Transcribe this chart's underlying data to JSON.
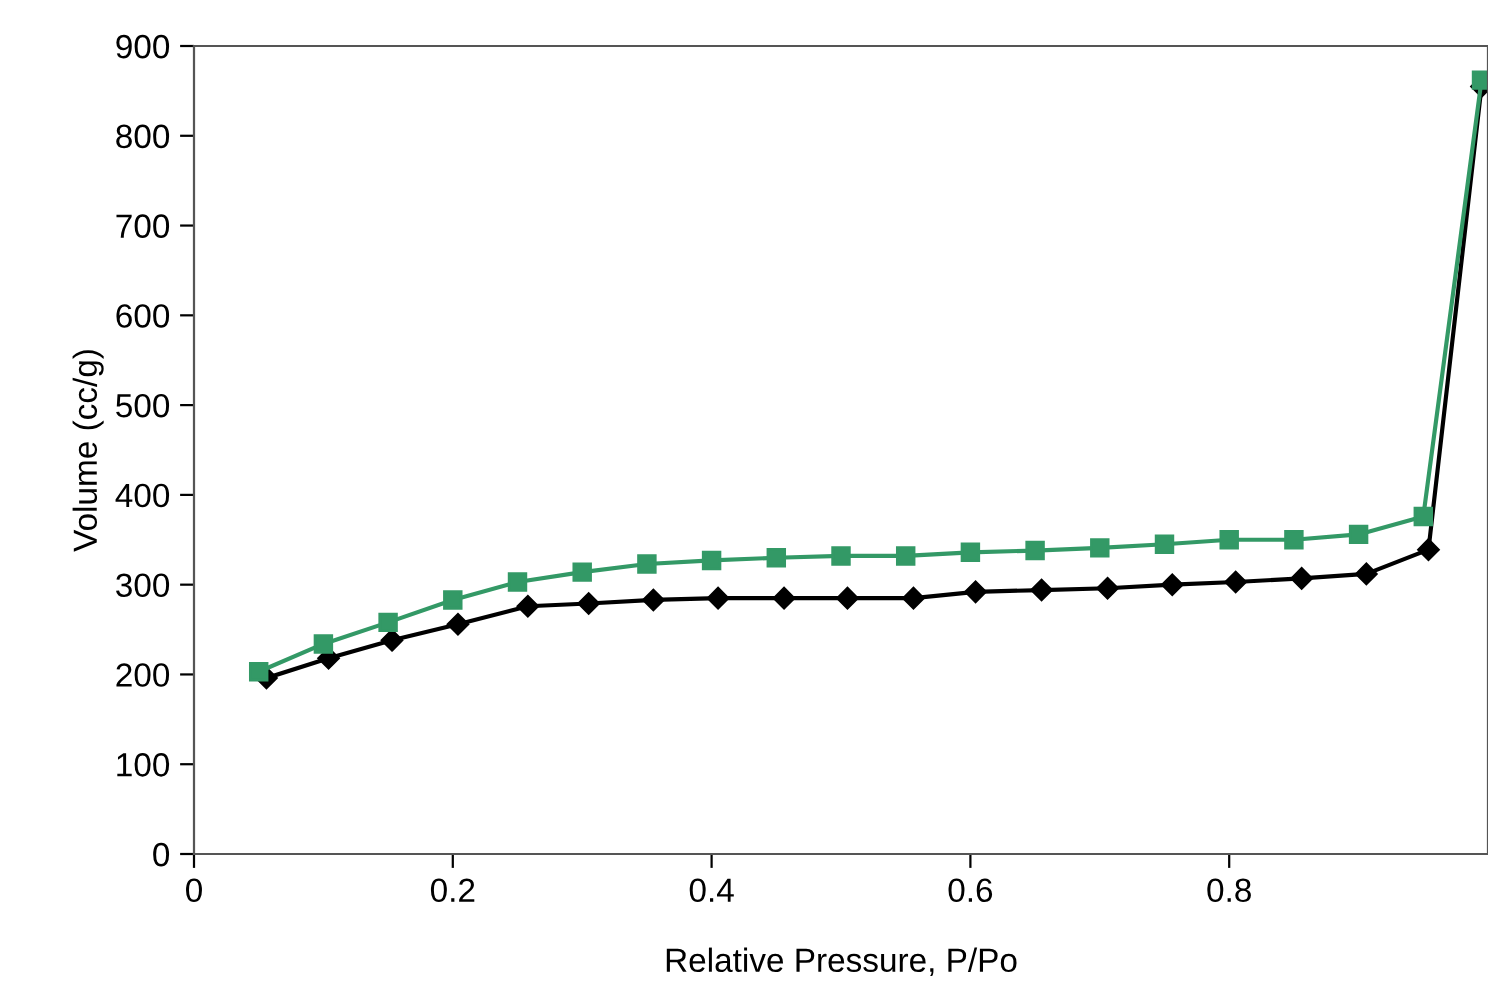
{
  "chart_data": {
    "type": "line",
    "xlabel": "Relative Pressure, P/Po",
    "ylabel": "Volume (cc/g)",
    "xlim": [
      0,
      1
    ],
    "xticks": [
      0,
      0.2,
      0.4,
      0.6,
      0.8
    ],
    "ylim": [
      0,
      900
    ],
    "yticks": [
      0,
      100,
      200,
      300,
      400,
      500,
      600,
      700,
      800,
      900
    ],
    "grid": false,
    "legend": false,
    "series": [
      {
        "color": "#000000",
        "marker": "diamond",
        "x": [
          0.056,
          0.104,
          0.153,
          0.204,
          0.258,
          0.305,
          0.355,
          0.405,
          0.456,
          0.505,
          0.556,
          0.604,
          0.655,
          0.706,
          0.756,
          0.805,
          0.856,
          0.906,
          0.954,
          0.995
        ],
        "values": [
          196,
          218,
          238,
          256,
          276,
          279,
          283,
          285,
          285,
          285,
          285,
          292,
          294,
          296,
          300,
          303,
          307,
          312,
          339,
          855
        ]
      },
      {
        "color": "#339966",
        "marker": "square",
        "x": [
          0.05,
          0.1,
          0.15,
          0.2,
          0.25,
          0.3,
          0.35,
          0.4,
          0.45,
          0.5,
          0.55,
          0.6,
          0.65,
          0.7,
          0.75,
          0.8,
          0.85,
          0.9,
          0.95,
          0.995
        ],
        "values": [
          203,
          234,
          258,
          283,
          303,
          314,
          323,
          327,
          330,
          332,
          332,
          336,
          338,
          341,
          345,
          350,
          350,
          356,
          376,
          862
        ]
      }
    ]
  }
}
